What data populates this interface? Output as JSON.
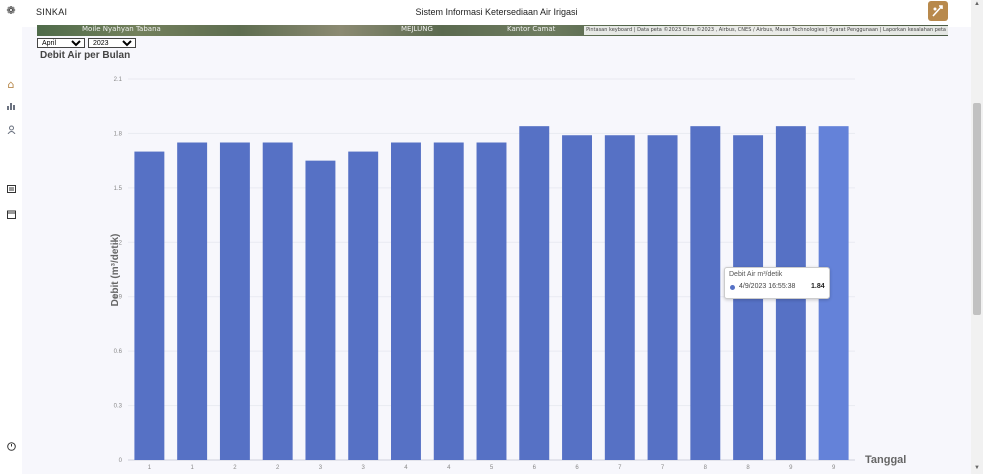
{
  "header": {
    "brand": "SINKAI",
    "title": "Sistem Informasi Ketersediaan Air Irigasi"
  },
  "sidebar": {
    "icons": [
      "leaf-icon",
      "home-icon",
      "bar-chart-icon",
      "user-icon",
      "document-icon",
      "calendar-icon",
      "logout-icon"
    ]
  },
  "map": {
    "labels": [
      "Moile Nyahyan Tabana",
      "MEJLUNG",
      "Kantor Camat"
    ],
    "attribution": "Pintasan keyboard | Data peta ©2023 Citra ©2023 , Airbus, CNES / Airbus, Maxar Technologies | Syarat Penggunaan | Laporkan kesalahan peta"
  },
  "filters": {
    "month": "April",
    "year": "2023"
  },
  "chart": {
    "title": "Debit Air per Bulan"
  },
  "chart_data": {
    "type": "bar",
    "title": "Debit Air per Bulan",
    "xlabel": "Tanggal",
    "ylabel": "Debit (m³/detik)",
    "ylim": [
      0,
      2.1
    ],
    "yticks": [
      "0",
      "0.3",
      "0.6",
      "0.9",
      "1.2",
      "1.5",
      "1.8",
      "2.1"
    ],
    "categories": [
      "1",
      "1",
      "2",
      "2",
      "3",
      "3",
      "4",
      "4",
      "5",
      "6",
      "6",
      "7",
      "7",
      "8",
      "8",
      "9",
      "9"
    ],
    "series": [
      {
        "values": [
          1.7,
          1.75,
          1.75,
          1.75,
          1.65,
          1.7,
          1.75,
          1.75,
          1.75,
          1.84,
          1.79,
          1.79,
          1.79,
          1.84,
          1.79,
          1.84,
          1.84
        ]
      }
    ],
    "highlight_index": 16,
    "colors": {
      "bar": "#5671c5",
      "highlight": "#6482d9"
    }
  },
  "tooltip": {
    "title": "Debit Air m³/detik",
    "label": "4/9/2023 16:55:38",
    "value": "1.84"
  },
  "scrollbar": {
    "up": "▲",
    "down": "▼"
  }
}
